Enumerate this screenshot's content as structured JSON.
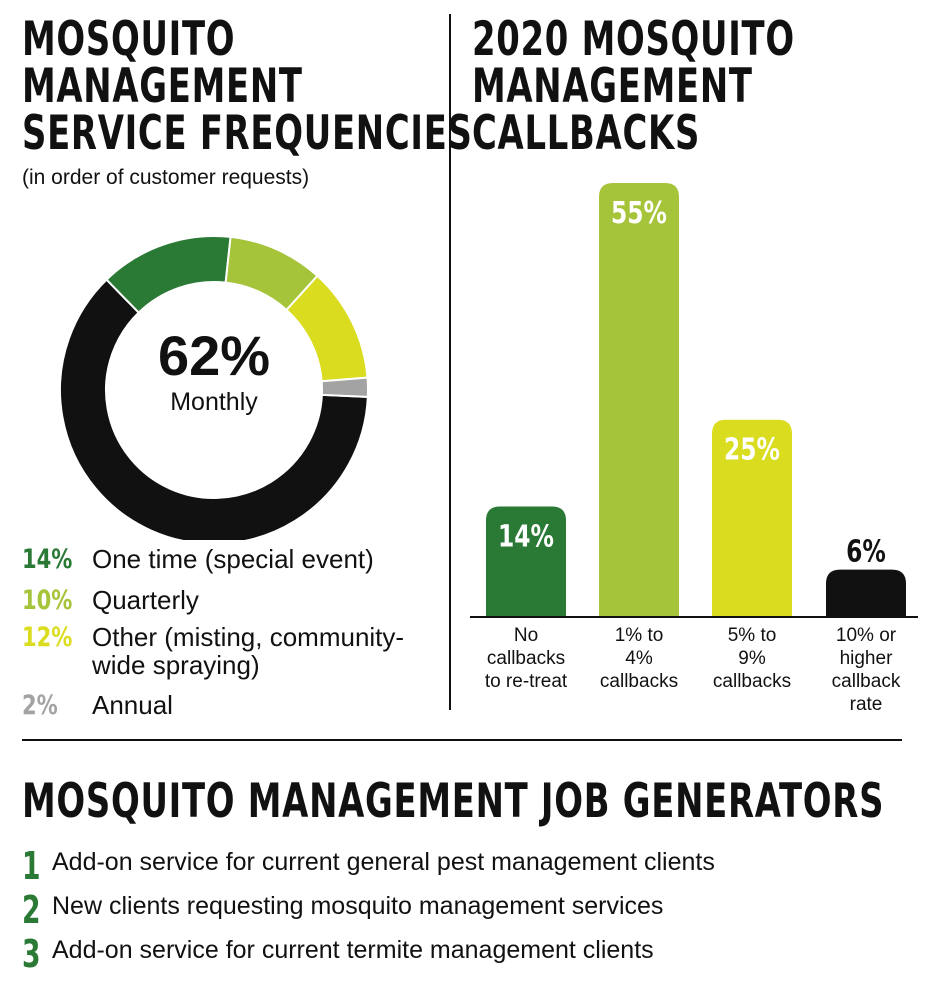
{
  "left_panel": {
    "title_lines": [
      "MOSQUITO",
      "MANAGEMENT",
      "SERVICE FREQUENCIES"
    ],
    "subtitle": "(in order of customer requests)",
    "center_value": "62%",
    "center_label": "Monthly",
    "legend": [
      {
        "pct": "14%",
        "text": "One time (special event)",
        "color": "#2a7a36"
      },
      {
        "pct": "10%",
        "text": "Quarterly",
        "color": "#a5c43a"
      },
      {
        "pct": "12%",
        "text": "Other (misting, community-",
        "continuation": "wide spraying)",
        "color": "#d9dc1f"
      },
      {
        "pct": "2%",
        "text": "Annual",
        "color": "#a3a3a3"
      }
    ]
  },
  "right_panel": {
    "title_lines": [
      "2020 MOSQUITO",
      "MANAGEMENT",
      "CALLBACKS"
    ]
  },
  "bottom": {
    "title": "MOSQUITO MANAGEMENT JOB GENERATORS",
    "items": [
      {
        "num": "1",
        "text": "Add-on service for current general pest management clients"
      },
      {
        "num": "2",
        "text": "New clients requesting mosquito management services"
      },
      {
        "num": "3",
        "text": "Add-on service for current termite management clients"
      }
    ]
  },
  "chart_data": [
    {
      "type": "pie",
      "title": "MOSQUITO MANAGEMENT SERVICE FREQUENCIES",
      "subtitle": "(in order of customer requests)",
      "donut": true,
      "slices": [
        {
          "label": "Monthly",
          "value": 62,
          "color": "#111111"
        },
        {
          "label": "One time (special event)",
          "value": 14,
          "color": "#2a7a36"
        },
        {
          "label": "Quarterly",
          "value": 10,
          "color": "#a5c43a"
        },
        {
          "label": "Other (misting, community-wide spraying)",
          "value": 12,
          "color": "#d9dc1f"
        },
        {
          "label": "Annual",
          "value": 2,
          "color": "#a3a3a3"
        }
      ]
    },
    {
      "type": "bar",
      "title": "2020 MOSQUITO MANAGEMENT CALLBACKS",
      "categories": [
        [
          "No",
          "callbacks",
          "to re-treat"
        ],
        [
          "1% to",
          "4%",
          "callbacks"
        ],
        [
          "5% to",
          "9%",
          "callbacks"
        ],
        [
          "10% or",
          "higher",
          "callback",
          "rate"
        ]
      ],
      "values": [
        14,
        55,
        25,
        6
      ],
      "value_labels": [
        "14%",
        "55%",
        "25%",
        "6%"
      ],
      "colors": [
        "#2a7a36",
        "#a5c43a",
        "#d9dc1f",
        "#111111"
      ],
      "label_colors": [
        "#ffffff",
        "#ffffff",
        "#ffffff",
        "#111111"
      ],
      "ylim": [
        0,
        55
      ]
    }
  ]
}
